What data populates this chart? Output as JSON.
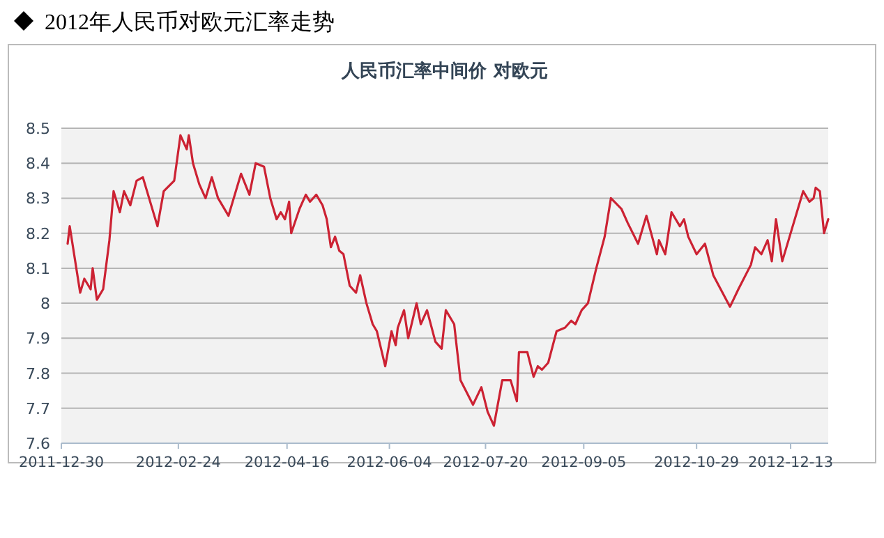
{
  "chart_data": {
    "type": "line",
    "title": "2012年人民币对欧元汇率走势",
    "subtitle": "人民币汇率中间价  对欧元",
    "xlim": [
      "2011-12-30",
      "2012-12-31"
    ],
    "xticks": [
      "2011-12-30",
      "2012-02-24",
      "2012-04-16",
      "2012-06-04",
      "2012-07-20",
      "2012-09-05",
      "2012-10-29",
      "2012-12-13"
    ],
    "ylim": [
      7.6,
      8.5
    ],
    "yticks": [
      7.6,
      7.7,
      7.8,
      7.9,
      8,
      8.1,
      8.2,
      8.3,
      8.4,
      8.5
    ],
    "grid": "y",
    "color": "#cc2233",
    "x": [
      "2012-01-02",
      "2012-01-03",
      "2012-01-08",
      "2012-01-10",
      "2012-01-13",
      "2012-01-14",
      "2012-01-16",
      "2012-01-19",
      "2012-01-22",
      "2012-01-24",
      "2012-01-27",
      "2012-01-29",
      "2012-02-01",
      "2012-02-04",
      "2012-02-07",
      "2012-02-14",
      "2012-02-17",
      "2012-02-22",
      "2012-02-25",
      "2012-02-28",
      "2012-02-29",
      "2012-03-02",
      "2012-03-05",
      "2012-03-08",
      "2012-03-11",
      "2012-03-14",
      "2012-03-19",
      "2012-03-25",
      "2012-03-29",
      "2012-04-01",
      "2012-04-05",
      "2012-04-08",
      "2012-04-11",
      "2012-04-13",
      "2012-04-15",
      "2012-04-17",
      "2012-04-18",
      "2012-04-22",
      "2012-04-25",
      "2012-04-27",
      "2012-04-30",
      "2012-05-03",
      "2012-05-05",
      "2012-05-07",
      "2012-05-09",
      "2012-05-11",
      "2012-05-13",
      "2012-05-16",
      "2012-05-19",
      "2012-05-21",
      "2012-05-24",
      "2012-05-27",
      "2012-05-29",
      "2012-06-02",
      "2012-06-05",
      "2012-06-07",
      "2012-06-08",
      "2012-06-11",
      "2012-06-13",
      "2012-06-17",
      "2012-06-19",
      "2012-06-22",
      "2012-06-26",
      "2012-06-29",
      "2012-07-01",
      "2012-07-05",
      "2012-07-08",
      "2012-07-14",
      "2012-07-18",
      "2012-07-21",
      "2012-07-24",
      "2012-07-28",
      "2012-08-01",
      "2012-08-04",
      "2012-08-05",
      "2012-08-09",
      "2012-08-12",
      "2012-08-14",
      "2012-08-16",
      "2012-08-19",
      "2012-08-23",
      "2012-08-27",
      "2012-08-30",
      "2012-09-01",
      "2012-09-04",
      "2012-09-07",
      "2012-09-11",
      "2012-09-15",
      "2012-09-18",
      "2012-09-23",
      "2012-09-26",
      "2012-10-01",
      "2012-10-05",
      "2012-10-10",
      "2012-10-11",
      "2012-10-14",
      "2012-10-17",
      "2012-10-21",
      "2012-10-23",
      "2012-10-25",
      "2012-10-29",
      "2012-11-02",
      "2012-11-06",
      "2012-11-14",
      "2012-11-18",
      "2012-11-24",
      "2012-11-26",
      "2012-11-29",
      "2012-12-02",
      "2012-12-04",
      "2012-12-06",
      "2012-12-09",
      "2012-12-14",
      "2012-12-17",
      "2012-12-19",
      "2012-12-22",
      "2012-12-24",
      "2012-12-25",
      "2012-12-27",
      "2012-12-29",
      "2012-12-31"
    ],
    "values": [
      8.17,
      8.22,
      8.03,
      8.07,
      8.04,
      8.1,
      8.01,
      8.04,
      8.18,
      8.32,
      8.26,
      8.32,
      8.28,
      8.35,
      8.36,
      8.22,
      8.32,
      8.35,
      8.48,
      8.44,
      8.48,
      8.4,
      8.34,
      8.3,
      8.36,
      8.3,
      8.25,
      8.37,
      8.31,
      8.4,
      8.39,
      8.3,
      8.24,
      8.26,
      8.24,
      8.29,
      8.2,
      8.27,
      8.31,
      8.29,
      8.31,
      8.28,
      8.24,
      8.16,
      8.19,
      8.15,
      8.14,
      8.05,
      8.03,
      8.08,
      8.0,
      7.94,
      7.92,
      7.82,
      7.92,
      7.88,
      7.93,
      7.98,
      7.9,
      8.0,
      7.94,
      7.98,
      7.89,
      7.87,
      7.98,
      7.94,
      7.78,
      7.71,
      7.76,
      7.69,
      7.65,
      7.78,
      7.78,
      7.72,
      7.86,
      7.86,
      7.79,
      7.82,
      7.81,
      7.83,
      7.92,
      7.93,
      7.95,
      7.94,
      7.98,
      8.0,
      8.1,
      8.19,
      8.3,
      8.27,
      8.23,
      8.17,
      8.25,
      8.14,
      8.18,
      8.14,
      8.26,
      8.22,
      8.24,
      8.19,
      8.14,
      8.17,
      8.08,
      7.99,
      8.04,
      8.11,
      8.16,
      8.14,
      8.18,
      8.12,
      8.24,
      8.12,
      8.22,
      8.28,
      8.32,
      8.29,
      8.3,
      8.33,
      8.32,
      8.2,
      8.24
    ]
  }
}
